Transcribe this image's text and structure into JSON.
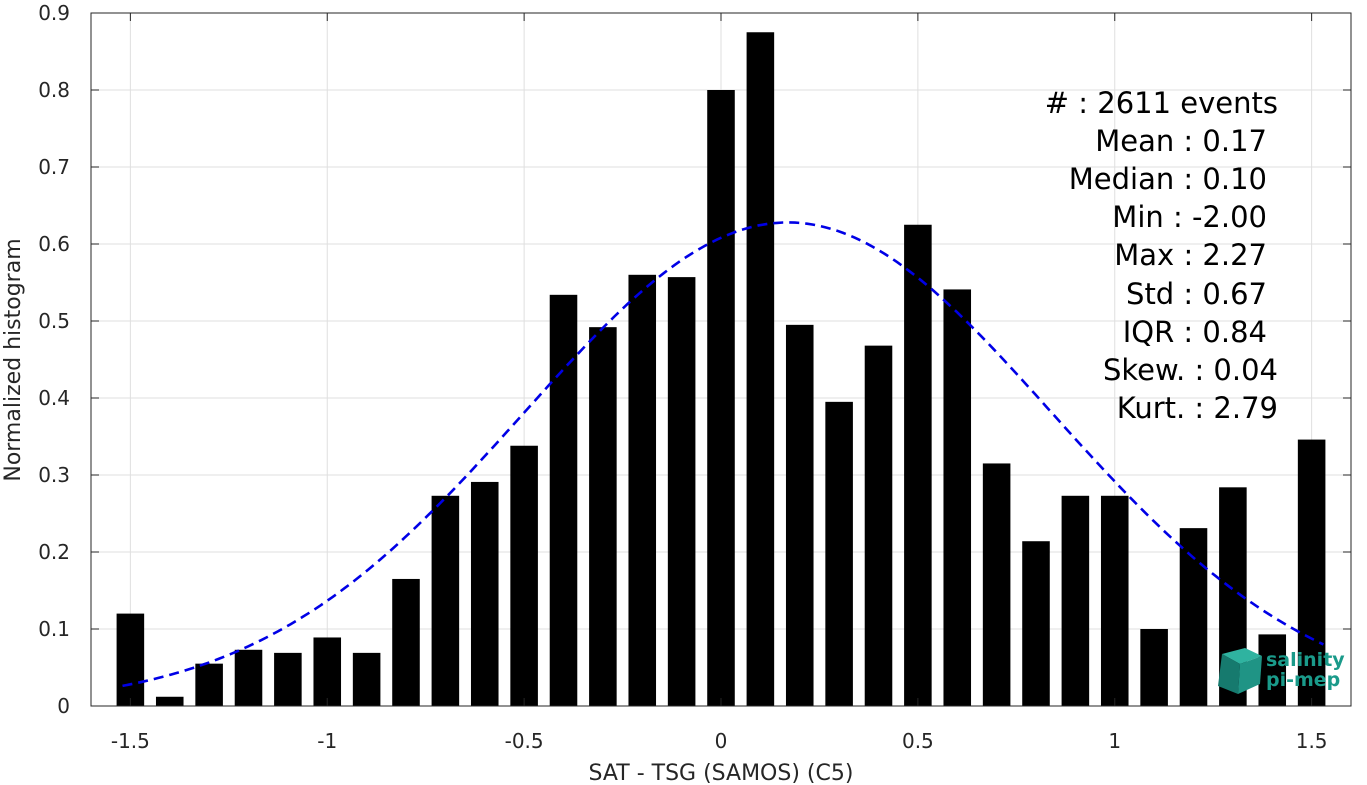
{
  "chart_data": {
    "type": "bar",
    "title": "",
    "xlabel": "SAT - TSG (SAMOS) (C5)",
    "ylabel": "Normalized histogram",
    "xlim": [
      -1.6,
      1.6
    ],
    "ylim": [
      0,
      0.9
    ],
    "xticks": [
      -1.5,
      -1,
      -0.5,
      0,
      0.5,
      1,
      1.5
    ],
    "xtick_labels": [
      "-1.5",
      "-1",
      "-0.5",
      "0",
      "0.5",
      "1",
      "1.5"
    ],
    "yticks": [
      0,
      0.1,
      0.2,
      0.3,
      0.4,
      0.5,
      0.6,
      0.7,
      0.8,
      0.9
    ],
    "ytick_labels": [
      "0",
      "0.1",
      "0.2",
      "0.3",
      "0.4",
      "0.5",
      "0.6",
      "0.7",
      "0.8",
      "0.9"
    ],
    "grid": true,
    "bar_color": "#000000",
    "bar_width": 0.07,
    "bins": [
      -1.5,
      -1.4,
      -1.3,
      -1.2,
      -1.1,
      -1.0,
      -0.9,
      -0.8,
      -0.7,
      -0.6,
      -0.5,
      -0.4,
      -0.3,
      -0.2,
      -0.1,
      0.0,
      0.1,
      0.2,
      0.3,
      0.4,
      0.5,
      0.6,
      0.7,
      0.8,
      0.9,
      1.0,
      1.1,
      1.2,
      1.3,
      1.4,
      1.5
    ],
    "values": [
      0.12,
      0.012,
      0.055,
      0.073,
      0.069,
      0.089,
      0.069,
      0.165,
      0.273,
      0.291,
      0.338,
      0.534,
      0.492,
      0.56,
      0.557,
      0.8,
      0.875,
      0.495,
      0.395,
      0.468,
      0.625,
      0.541,
      0.315,
      0.214,
      0.273,
      0.273,
      0.1,
      0.231,
      0.284,
      0.093,
      0.346
    ],
    "fit_curve": {
      "type": "normal",
      "mean": 0.17,
      "std": 0.67,
      "peak": 0.628,
      "x_range": [
        -1.52,
        1.53
      ],
      "color": "#0000e6",
      "style": "dashed"
    }
  },
  "stats": [
    "#  : 2611 events",
    "Mean : 0.17",
    "Median : 0.10",
    "Min : -2.00",
    "Max : 2.27",
    "Std : 0.67",
    "IQR : 0.84",
    "Skew. : 0.04",
    "Kurt. : 2.79"
  ],
  "logo": {
    "line1": "salinity",
    "line2": "pi-mep",
    "color": "#1a9a8a"
  }
}
